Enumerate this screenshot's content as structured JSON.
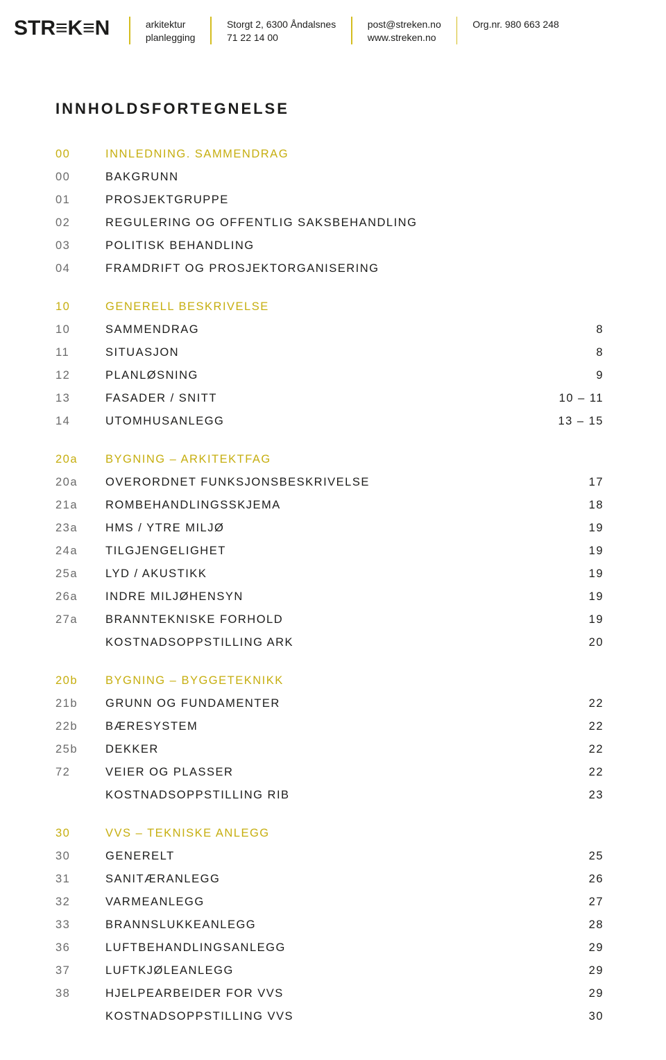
{
  "colors": {
    "text": "#1c1c1b",
    "muted": "#6a6a6a",
    "accent": "#c6ae0f",
    "divider": "#d4bd1f",
    "background": "#ffffff"
  },
  "logo_text": "STR≡K≡N",
  "header": {
    "col1": {
      "line1": "arkitektur",
      "line2": "planlegging"
    },
    "col2": {
      "line1": "Storgt 2, 6300 Åndalsnes",
      "line2": "71 22 14 00"
    },
    "col3": {
      "line1": "post@streken.no",
      "line2": "www.streken.no"
    },
    "col4": {
      "line1": "Org.nr. 980 663 248"
    }
  },
  "title": "INNHOLDSFORTEGNELSE",
  "sections": [
    {
      "heading": {
        "num": "00",
        "label": "INNLEDNING. SAMMENDRAG"
      },
      "rows": [
        {
          "num": "00",
          "label": "BAKGRUNN",
          "page": ""
        },
        {
          "num": "01",
          "label": "PROSJEKTGRUPPE",
          "page": ""
        },
        {
          "num": "02",
          "label": "REGULERING OG OFFENTLIG SAKSBEHANDLING",
          "page": ""
        },
        {
          "num": "03",
          "label": "POLITISK BEHANDLING",
          "page": ""
        },
        {
          "num": "04",
          "label": "FRAMDRIFT OG PROSJEKTORGANISERING",
          "page": ""
        }
      ]
    },
    {
      "heading": {
        "num": "10",
        "label": "GENERELL BESKRIVELSE"
      },
      "rows": [
        {
          "num": "10",
          "label": "SAMMENDRAG",
          "page": "8"
        },
        {
          "num": "11",
          "label": "SITUASJON",
          "page": "8"
        },
        {
          "num": "12",
          "label": "PLANLØSNING",
          "page": "9"
        },
        {
          "num": "13",
          "label": "FASADER / SNITT",
          "page": "10 – 11"
        },
        {
          "num": "14",
          "label": "UTOMHUSANLEGG",
          "page": "13 – 15"
        }
      ]
    },
    {
      "heading": {
        "num": "20a",
        "label": "BYGNING – ARKITEKTFAG"
      },
      "rows": [
        {
          "num": "20a",
          "label": "OVERORDNET FUNKSJONSBESKRIVELSE",
          "page": "17"
        },
        {
          "num": "21a",
          "label": "ROMBEHANDLINGSSKJEMA",
          "page": "18"
        },
        {
          "num": "23a",
          "label": "HMS / YTRE MILJØ",
          "page": "19"
        },
        {
          "num": "24a",
          "label": "TILGJENGELIGHET",
          "page": "19"
        },
        {
          "num": "25a",
          "label": "LYD / AKUSTIKK",
          "page": "19"
        },
        {
          "num": "26a",
          "label": "INDRE MILJØHENSYN",
          "page": "19"
        },
        {
          "num": "27a",
          "label": "BRANNTEKNISKE FORHOLD",
          "page": "19"
        },
        {
          "num": "",
          "label": "KOSTNADSOPPSTILLING ARK",
          "page": "20"
        }
      ]
    },
    {
      "heading": {
        "num": "20b",
        "label": "BYGNING – BYGGETEKNIKK"
      },
      "rows": [
        {
          "num": "21b",
          "label": "GRUNN OG FUNDAMENTER",
          "page": "22"
        },
        {
          "num": "22b",
          "label": "BÆRESYSTEM",
          "page": "22"
        },
        {
          "num": "25b",
          "label": "DEKKER",
          "page": "22"
        },
        {
          "num": "72",
          "label": "VEIER OG PLASSER",
          "page": "22"
        },
        {
          "num": "",
          "label": "KOSTNADSOPPSTILLING RIB",
          "page": "23"
        }
      ]
    },
    {
      "heading": {
        "num": "30",
        "label": "VVS – TEKNISKE ANLEGG"
      },
      "rows": [
        {
          "num": "30",
          "label": "GENERELT",
          "page": "25"
        },
        {
          "num": "31",
          "label": "SANITÆRANLEGG",
          "page": "26"
        },
        {
          "num": "32",
          "label": "VARMEANLEGG",
          "page": "27"
        },
        {
          "num": "33",
          "label": "BRANNSLUKKEANLEGG",
          "page": "28"
        },
        {
          "num": "36",
          "label": "LUFTBEHANDLINGSANLEGG",
          "page": "29"
        },
        {
          "num": "37",
          "label": "LUFTKJØLEANLEGG",
          "page": "29"
        },
        {
          "num": "38",
          "label": "HJELPEARBEIDER FOR VVS",
          "page": "29"
        },
        {
          "num": "",
          "label": "KOSTNADSOPPSTILLING VVS",
          "page": "30"
        }
      ]
    }
  ]
}
